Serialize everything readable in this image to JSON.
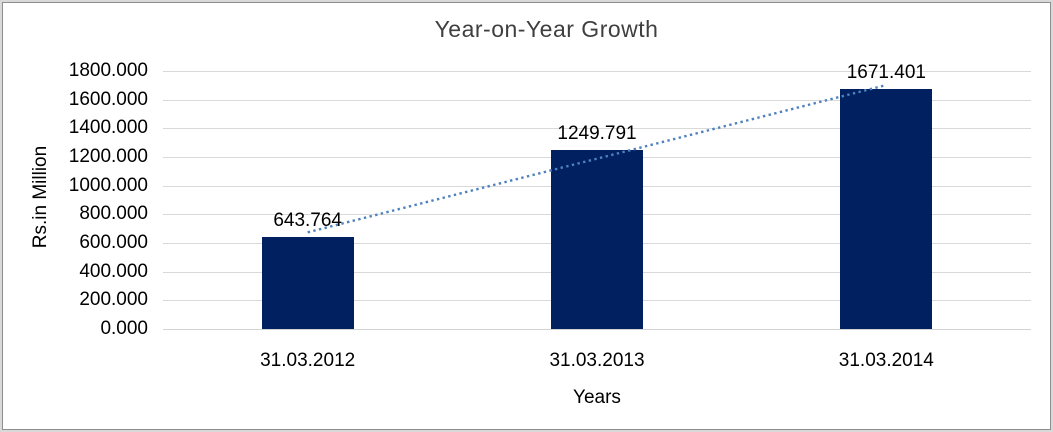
{
  "frame": {
    "outer_band_color": "#d9d9d9",
    "border_line_color": "#8e8e8e",
    "background": "#ffffff"
  },
  "chart_data": {
    "type": "bar",
    "title": "Year-on-Year Growth",
    "xlabel": "Years",
    "ylabel": "Rs.in Million",
    "categories": [
      "31.03.2012",
      "31.03.2013",
      "31.03.2014"
    ],
    "values": [
      643.764,
      1249.791,
      1671.401
    ],
    "data_labels": [
      "643.764",
      "1249.791",
      "1671.401"
    ],
    "ylim": [
      0,
      1800
    ],
    "ytick_step": 200,
    "ytick_labels": [
      "0.000",
      "200.000",
      "400.000",
      "600.000",
      "800.000",
      "1000.000",
      "1200.000",
      "1400.000",
      "1600.000",
      "1800.000"
    ],
    "grid": true,
    "legend": "none",
    "bar_color": "#002060",
    "gridline_color": "#d9d9d9",
    "text_color": "#000000",
    "trendline": {
      "type": "linear",
      "style": "dotted",
      "color": "#4e81bd"
    }
  }
}
